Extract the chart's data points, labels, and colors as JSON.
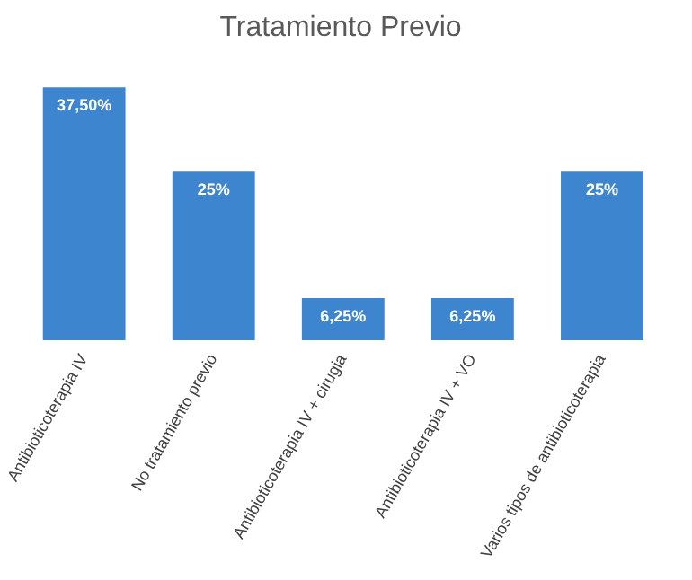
{
  "chart_data": {
    "type": "bar",
    "title": "Tratamiento Previo",
    "categories": [
      "Antibioticoterapia IV",
      "No tratamiento previo",
      "Antibioticoterapia IV + cirugia",
      "Antibioticoterapia IV + VO",
      "Varios tipos de antibioticoterapia"
    ],
    "values": [
      37.5,
      25,
      6.25,
      6.25,
      25
    ],
    "value_labels": [
      "37,50%",
      "25%",
      "6,25%",
      "6,25%",
      "25%"
    ],
    "color": "#3d86cf",
    "grid": false,
    "legend": false,
    "tick_labels": "x"
  }
}
